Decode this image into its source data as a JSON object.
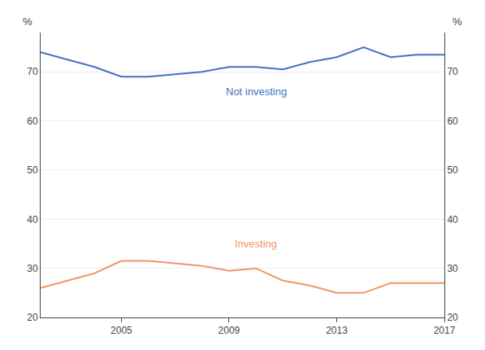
{
  "chart_data": {
    "type": "line",
    "x": [
      2002,
      2003,
      2004,
      2005,
      2006,
      2007,
      2008,
      2009,
      2010,
      2011,
      2012,
      2013,
      2014,
      2015,
      2016,
      2017
    ],
    "series": [
      {
        "name": "Not investing",
        "color": "#4472c4",
        "values": [
          74.0,
          72.5,
          71.0,
          69.0,
          69.0,
          69.5,
          70.0,
          71.0,
          71.0,
          70.5,
          72.0,
          73.0,
          75.0,
          73.0,
          73.5,
          73.5
        ]
      },
      {
        "name": "Investing",
        "color": "#f0956a",
        "values": [
          26.0,
          27.5,
          29.0,
          31.5,
          31.5,
          31.0,
          30.5,
          29.5,
          30.0,
          27.5,
          26.5,
          25.0,
          25.0,
          27.0,
          27.0,
          27.0
        ]
      }
    ],
    "ylabel": "%",
    "xlim": [
      2002,
      2017
    ],
    "xticks": [
      2005,
      2009,
      2013,
      2017
    ],
    "ylim": [
      20,
      78
    ],
    "yticks": [
      20,
      30,
      40,
      50,
      60,
      70
    ],
    "grid": true
  }
}
